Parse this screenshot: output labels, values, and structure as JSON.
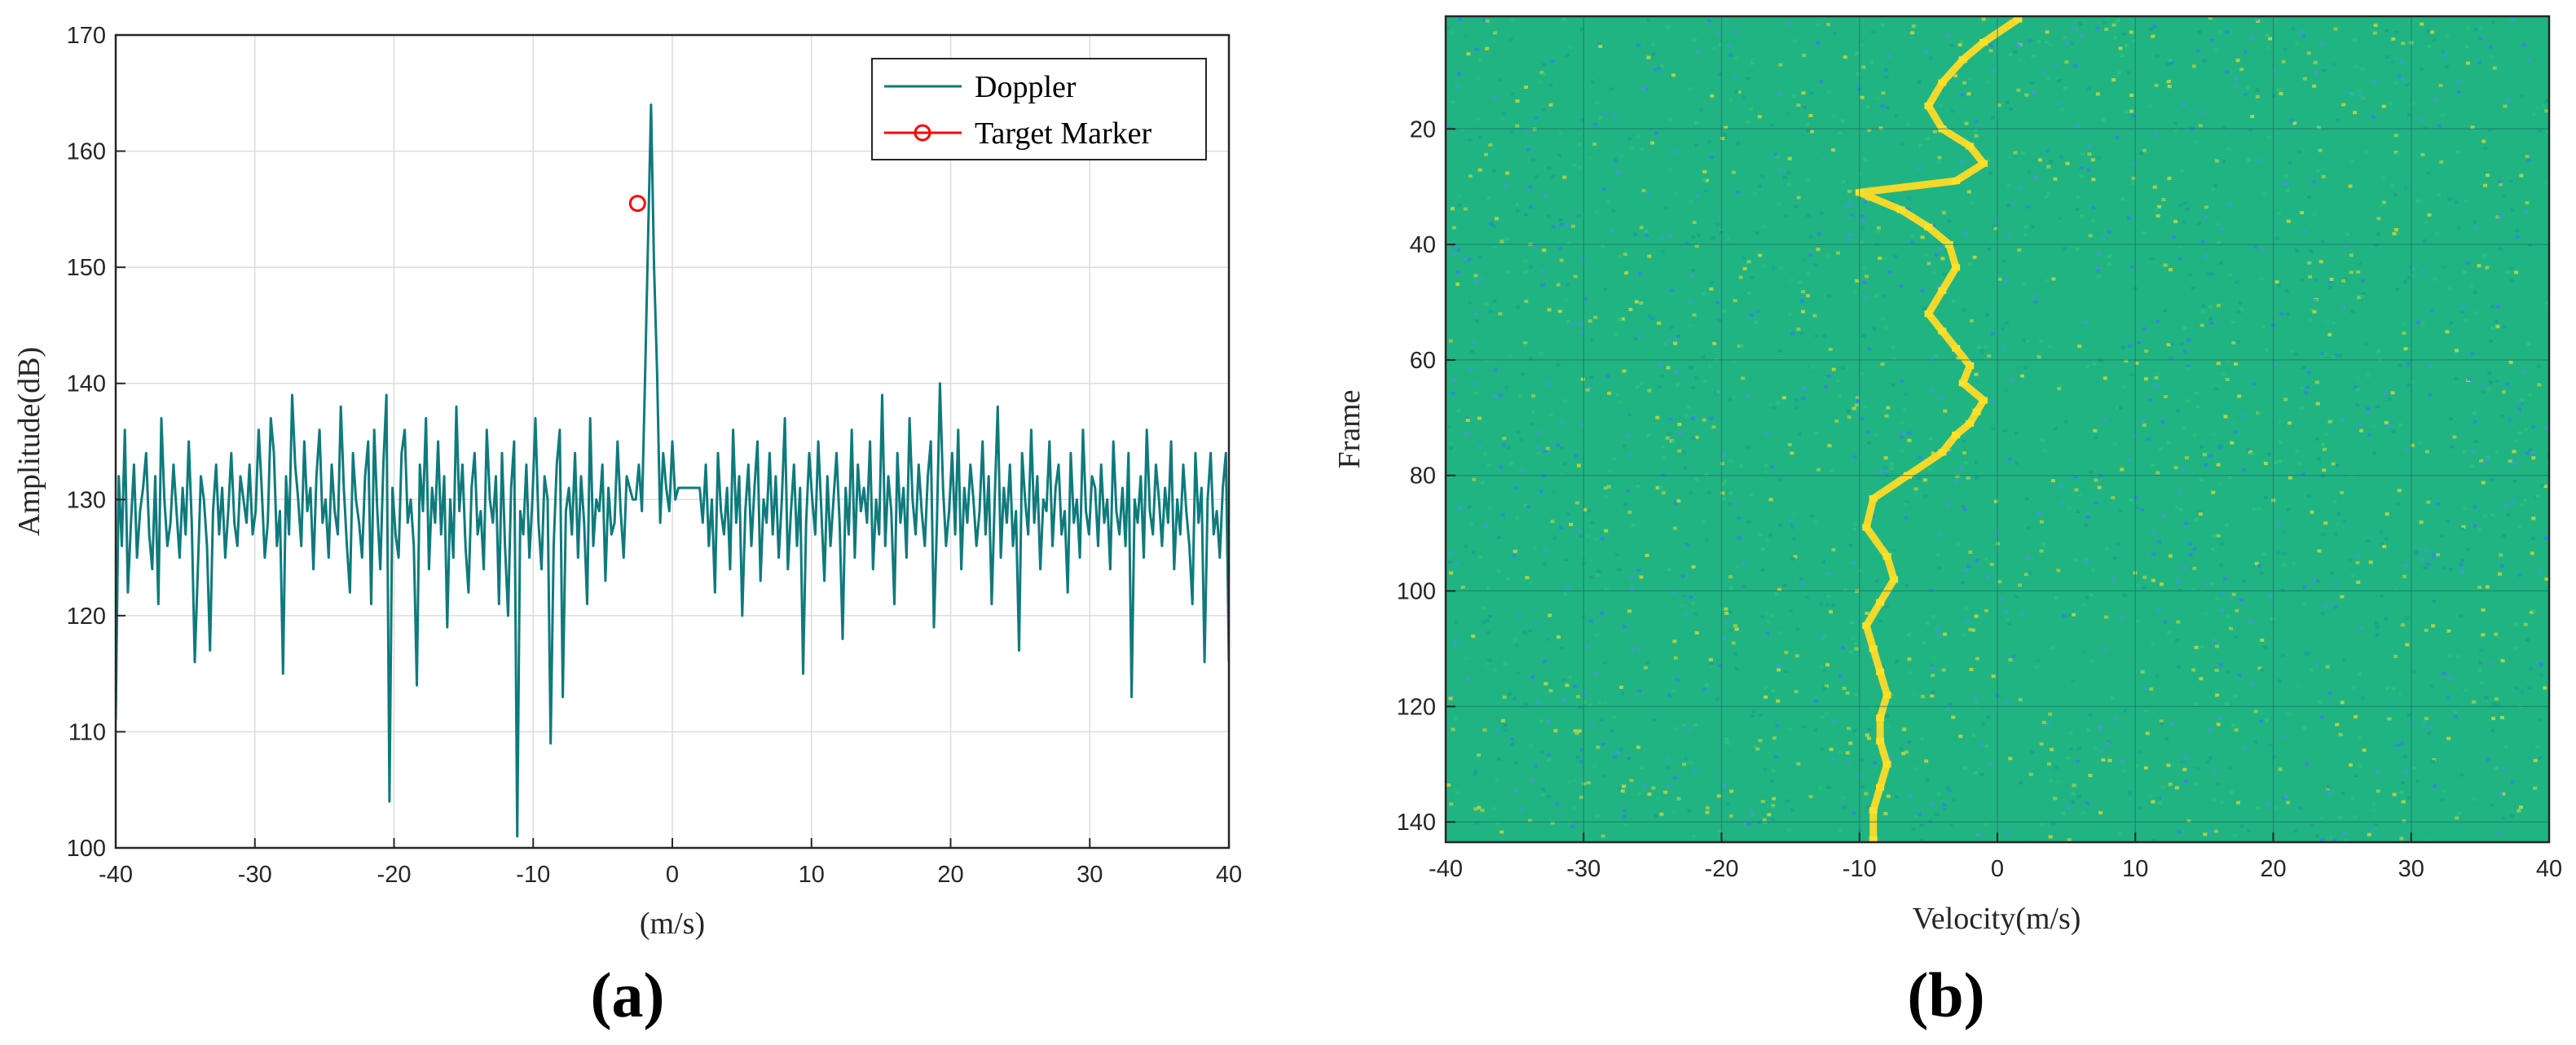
{
  "chart_data": [
    {
      "panel_label": "(a)",
      "type": "line",
      "xlabel": "(m/s)",
      "ylabel": "Amplitude(dB)",
      "xlim": [
        -40,
        40
      ],
      "ylim": [
        100,
        170
      ],
      "xticks": [
        "-40",
        "-30",
        "-20",
        "-10",
        "0",
        "10",
        "20",
        "30",
        "40"
      ],
      "yticks": [
        "100",
        "110",
        "120",
        "130",
        "140",
        "150",
        "160",
        "170"
      ],
      "grid": true,
      "legend_position": "top-right",
      "colors": {
        "doppler": "#0f7a7c",
        "marker": "#ff0000"
      },
      "series": [
        {
          "name": "Doppler",
          "style": "line",
          "x_range": [
            -40,
            40
          ],
          "values": [
            111,
            132,
            126,
            136,
            122,
            128,
            133,
            125,
            129,
            131,
            134,
            127,
            124,
            132,
            121,
            137,
            130,
            126,
            128,
            133,
            129,
            125,
            131,
            127,
            135,
            128,
            116,
            124,
            132,
            130,
            126,
            117,
            129,
            133,
            127,
            131,
            125,
            129,
            134,
            128,
            126,
            132,
            130,
            128,
            133,
            127,
            129,
            136,
            131,
            125,
            128,
            137,
            134,
            126,
            129,
            115,
            132,
            127,
            139,
            133,
            130,
            126,
            135,
            129,
            131,
            124,
            132,
            136,
            128,
            130,
            125,
            133,
            129,
            127,
            138,
            131,
            126,
            122,
            134,
            130,
            128,
            125,
            132,
            135,
            121,
            136,
            129,
            124,
            133,
            139,
            104,
            131,
            127,
            125,
            134,
            136,
            128,
            130,
            126,
            114,
            133,
            129,
            137,
            124,
            131,
            128,
            135,
            127,
            132,
            119,
            130,
            125,
            138,
            129,
            133,
            126,
            122,
            131,
            134,
            127,
            129,
            124,
            136,
            130,
            128,
            132,
            121,
            134,
            126,
            120,
            131,
            135,
            101,
            129,
            127,
            133,
            125,
            130,
            137,
            128,
            124,
            132,
            130,
            109,
            126,
            133,
            136,
            113,
            129,
            131,
            127,
            134,
            125,
            132,
            128,
            121,
            137,
            126,
            130,
            129,
            133,
            123,
            131,
            127,
            128,
            135,
            129,
            125,
            132,
            131,
            130,
            130,
            133,
            129,
            140,
            152,
            164,
            150,
            141,
            128,
            134,
            131,
            129,
            135,
            130,
            131,
            131,
            131,
            131,
            131,
            131,
            131,
            131,
            128,
            133,
            126,
            130,
            122,
            134,
            129,
            127,
            131,
            124,
            136,
            128,
            132,
            120,
            129,
            133,
            126,
            131,
            135,
            123,
            130,
            128,
            134,
            127,
            132,
            125,
            130,
            137,
            124,
            129,
            133,
            126,
            131,
            115,
            128,
            134,
            130,
            127,
            135,
            129,
            123,
            132,
            126,
            130,
            134,
            128,
            118,
            131,
            127,
            136,
            125,
            133,
            129,
            131,
            128,
            135,
            124,
            130,
            127,
            139,
            126,
            132,
            129,
            121,
            134,
            128,
            131,
            125,
            137,
            130,
            127,
            133,
            129,
            126,
            132,
            135,
            119,
            128,
            140,
            131,
            126,
            129,
            134,
            127,
            136,
            124,
            131,
            128,
            133,
            130,
            126,
            129,
            135,
            127,
            132,
            121,
            130,
            138,
            125,
            131,
            128,
            133,
            126,
            129,
            117,
            134,
            130,
            127,
            136,
            128,
            132,
            124,
            130,
            129,
            135,
            126,
            131,
            133,
            127,
            129,
            122,
            134,
            128,
            130,
            125,
            136,
            129,
            127,
            132,
            131,
            126,
            133,
            128,
            130,
            124,
            135,
            129,
            127,
            131,
            126,
            134,
            113,
            130,
            128,
            132,
            125,
            136,
            129,
            127,
            133,
            130,
            126,
            131,
            128,
            135,
            124,
            130,
            127,
            133,
            129,
            126,
            121,
            134,
            128,
            131,
            116,
            130,
            134,
            127,
            129,
            125,
            131,
            134,
            116
          ]
        },
        {
          "name": "Target Marker",
          "style": "marker",
          "x": -2.5,
          "y": 155.5
        }
      ]
    },
    {
      "panel_label": "(b)",
      "type": "heatmap",
      "xlabel": "Velocity(m/s)",
      "ylabel": "Frame",
      "xlim": [
        -40,
        40
      ],
      "ylim": [
        1,
        143
      ],
      "y_reversed": true,
      "xticks": [
        "-40",
        "-30",
        "-20",
        "-10",
        "0",
        "10",
        "20",
        "30",
        "40"
      ],
      "yticks": [
        "20",
        "40",
        "60",
        "80",
        "100",
        "120",
        "140"
      ],
      "grid": true,
      "colors": {
        "background": "#20b482",
        "track": "#f2d92c",
        "speckle_blue": "#2a7fe0",
        "speckle_yellow": "#c8d43c"
      },
      "target_track": {
        "frames": [
          1,
          5,
          8,
          12,
          16,
          20,
          23,
          26,
          29,
          31,
          34,
          37,
          40,
          44,
          48,
          52,
          55,
          58,
          61,
          64,
          67,
          69,
          71,
          73,
          76,
          80,
          84,
          89,
          94,
          98,
          102,
          106,
          110,
          114,
          118,
          122,
          126,
          130,
          134,
          138,
          143
        ],
        "velocity": [
          1.5,
          -1,
          -2.5,
          -4,
          -5,
          -4,
          -2,
          -1,
          -3,
          -10,
          -7,
          -5,
          -3.5,
          -3,
          -4,
          -5,
          -4,
          -3,
          -2,
          -2.5,
          -1,
          -1.5,
          -2,
          -3,
          -4,
          -6.5,
          -9,
          -9.5,
          -8,
          -7.5,
          -8.5,
          -9.5,
          -9,
          -8.5,
          -8,
          -8.5,
          -8.5,
          -8,
          -8.5,
          -9,
          -9
        ]
      }
    }
  ]
}
